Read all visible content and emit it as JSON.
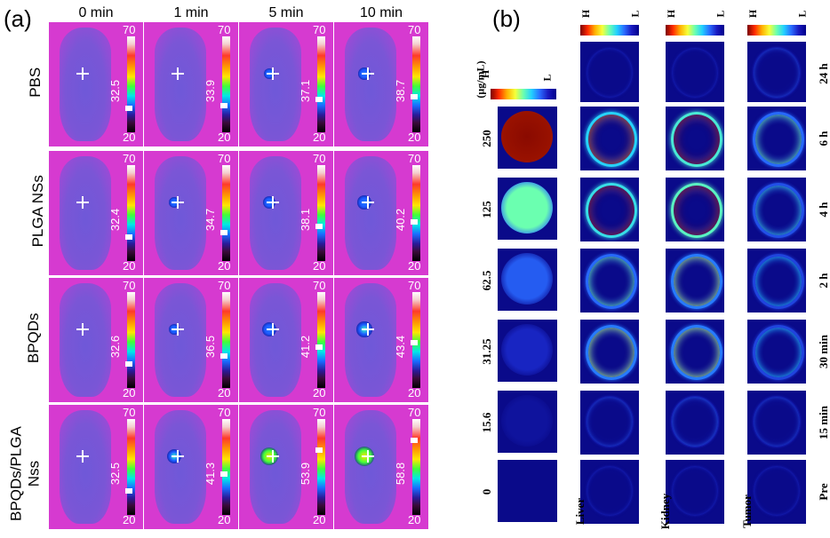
{
  "figure": {
    "panel_a_label": "(a)",
    "panel_b_label": "(b)"
  },
  "panel_a": {
    "time_points": [
      "0 min",
      "1 min",
      "5 min",
      "10 min"
    ],
    "scale_max": "70",
    "scale_min": "20",
    "groups": [
      {
        "name": "PBS",
        "temps": [
          "32.5",
          "33.9",
          "37.1",
          "38.7"
        ],
        "hotspot": [
          0,
          0,
          0.2,
          0.3
        ]
      },
      {
        "name": "PLGA NSs",
        "temps": [
          "32.4",
          "34.7",
          "38.1",
          "40.2"
        ],
        "hotspot": [
          0,
          0.15,
          0.35,
          0.45
        ]
      },
      {
        "name": "BPQDs",
        "temps": [
          "32.6",
          "36.5",
          "41.2",
          "43.4"
        ],
        "hotspot": [
          0,
          0.2,
          0.5,
          0.6
        ]
      },
      {
        "name": "BPQDs/PLGA\nNss",
        "temps": [
          "32.5",
          "41.3",
          "53.9",
          "58.8"
        ],
        "hotspot": [
          0,
          0.55,
          0.85,
          1.0
        ]
      }
    ],
    "colors": {
      "background": "#d63ad0",
      "mouse": "#7a56d6"
    }
  },
  "panel_b": {
    "scale_high": "H",
    "scale_low": "L",
    "concentration_unit": "(μg/mL)",
    "concentrations": [
      "250",
      "125",
      "62.5",
      "31.25",
      "15.6",
      "0"
    ],
    "concentration_intensity": [
      1.0,
      0.7,
      0.35,
      0.18,
      0.06,
      0.0
    ],
    "organs": [
      "Liver",
      "Kidney",
      "Tumor"
    ],
    "time_points": [
      "24 h",
      "6 h",
      "4 h",
      "2 h",
      "30 min",
      "15 min",
      "Pre"
    ],
    "organ_intensity": {
      "Liver": [
        0.05,
        0.8,
        0.85,
        0.55,
        0.6,
        0.15,
        0.05
      ],
      "Kidney": [
        0.05,
        0.9,
        0.95,
        0.6,
        0.6,
        0.2,
        0.05
      ],
      "Tumor": [
        0.15,
        0.55,
        0.45,
        0.4,
        0.4,
        0.15,
        0.05
      ]
    }
  }
}
